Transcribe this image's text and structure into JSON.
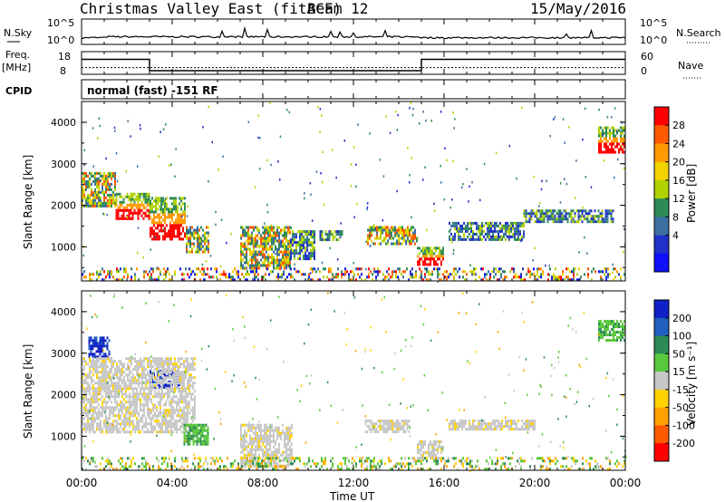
{
  "header": {
    "title": "Christmas Valley East (fitACF)",
    "beam": "Beam 12",
    "date": "15/May/2016"
  },
  "strips": {
    "nsky_label": "N.Sky",
    "nsky_ticks": [
      "10^5",
      "10^0"
    ],
    "nsky_right_ticks": [
      "10^5",
      "10^0"
    ],
    "nsearch_label": "N.Search",
    "freq_label_1": "Freq.",
    "freq_label_2": "[MHz]",
    "freq_ticks": [
      "18",
      "8"
    ],
    "nave_ticks": [
      "60",
      "0"
    ],
    "nave_label": "Nave",
    "cpid_label": "CPID",
    "cpid_text": "normal (fast) -151 RF"
  },
  "chart_data": [
    {
      "type": "heatmap",
      "name": "power",
      "ylabel": "Slant Range [km]",
      "yticks": [
        "4000",
        "3000",
        "2000",
        "1000"
      ],
      "ylim": [
        180,
        4500
      ],
      "colorbar": {
        "label": "Power [dB]",
        "ticks": [
          "28",
          "24",
          "20",
          "16",
          "12",
          "8",
          "4"
        ],
        "colors": [
          "#ff0000",
          "#ff5a00",
          "#ff9a00",
          "#f2d200",
          "#b2d200",
          "#2e8b57",
          "#3c6fa0",
          "#2030c8",
          "#1010ff"
        ]
      },
      "regions": [
        {
          "t": [
            0.0,
            1.5
          ],
          "r": [
            2000,
            2800
          ],
          "level": "mid"
        },
        {
          "t": [
            1.5,
            3.0
          ],
          "r": [
            1700,
            2300
          ],
          "level": "high"
        },
        {
          "t": [
            3.0,
            4.6
          ],
          "r": [
            1200,
            2200
          ],
          "level": "high"
        },
        {
          "t": [
            4.6,
            5.6
          ],
          "r": [
            900,
            1500
          ],
          "level": "mid"
        },
        {
          "t": [
            7.0,
            9.2
          ],
          "r": [
            500,
            1500
          ],
          "level": "mid"
        },
        {
          "t": [
            9.2,
            10.3
          ],
          "r": [
            700,
            1400
          ],
          "level": "low"
        },
        {
          "t": [
            10.5,
            11.5
          ],
          "r": [
            1200,
            1400
          ],
          "level": "low"
        },
        {
          "t": [
            12.6,
            14.8
          ],
          "r": [
            1100,
            1500
          ],
          "level": "mid"
        },
        {
          "t": [
            14.8,
            16.0
          ],
          "r": [
            600,
            1000
          ],
          "level": "high"
        },
        {
          "t": [
            16.2,
            19.5
          ],
          "r": [
            1200,
            1600
          ],
          "level": "low"
        },
        {
          "t": [
            19.5,
            23.5
          ],
          "r": [
            1600,
            1900
          ],
          "level": "low"
        },
        {
          "t": [
            22.8,
            24.0
          ],
          "r": [
            3300,
            3900
          ],
          "level": "high"
        },
        {
          "t": [
            0.0,
            24.0
          ],
          "r": [
            200,
            500
          ],
          "level": "mixed"
        }
      ]
    },
    {
      "type": "heatmap",
      "name": "velocity",
      "ylabel": "Slant Range [km]",
      "yticks": [
        "4000",
        "3000",
        "2000",
        "1000"
      ],
      "ylim": [
        180,
        4500
      ],
      "colorbar": {
        "label": "Velocity [m s⁻¹]",
        "ticks": [
          "200",
          "100",
          "50",
          "15",
          "-15",
          "-50",
          "-100",
          "-200"
        ],
        "colors": [
          "#1020c8",
          "#2060c0",
          "#2e8b57",
          "#5ac83c",
          "#c8c8c8",
          "#ffd200",
          "#ffa000",
          "#ff5a00",
          "#ff0000"
        ]
      },
      "regions": [
        {
          "t": [
            0.3,
            1.2
          ],
          "r": [
            2900,
            3400
          ],
          "level": "neg"
        },
        {
          "t": [
            3.0,
            4.3
          ],
          "r": [
            2200,
            2600
          ],
          "level": "neg"
        },
        {
          "t": [
            0.0,
            5.0
          ],
          "r": [
            1100,
            2900
          ],
          "level": "zero"
        },
        {
          "t": [
            4.5,
            5.6
          ],
          "r": [
            800,
            1300
          ],
          "level": "pos"
        },
        {
          "t": [
            7.0,
            9.3
          ],
          "r": [
            300,
            1300
          ],
          "level": "zero"
        },
        {
          "t": [
            12.5,
            14.5
          ],
          "r": [
            1100,
            1400
          ],
          "level": "zero"
        },
        {
          "t": [
            14.8,
            16.0
          ],
          "r": [
            500,
            900
          ],
          "level": "zero"
        },
        {
          "t": [
            16.2,
            20.0
          ],
          "r": [
            1200,
            1400
          ],
          "level": "zero"
        },
        {
          "t": [
            22.8,
            24.0
          ],
          "r": [
            3300,
            3800
          ],
          "level": "pos"
        },
        {
          "t": [
            0.0,
            24.0
          ],
          "r": [
            200,
            500
          ],
          "level": "mixedv"
        }
      ]
    }
  ],
  "xaxis": {
    "label": "Time UT",
    "ticks": [
      "00:00",
      "04:00",
      "08:00",
      "12:00",
      "16:00",
      "20:00",
      "00:00"
    ],
    "range_hours": [
      0,
      24
    ]
  },
  "frequency_steps": [
    {
      "t": [
        0,
        3
      ],
      "mhz": 16.5
    },
    {
      "t": [
        3,
        15
      ],
      "mhz": 9.2
    },
    {
      "t": [
        15,
        24
      ],
      "mhz": 16.5
    }
  ],
  "nave_level": 20
}
